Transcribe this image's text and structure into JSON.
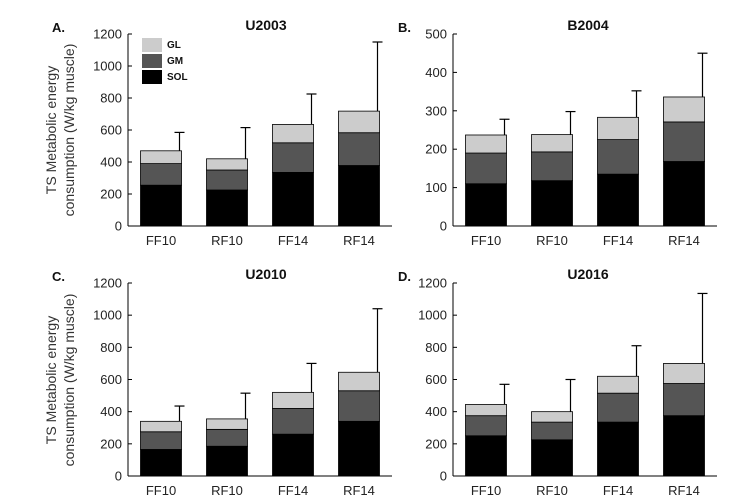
{
  "y_axis_label": {
    "line1": "TS Metabolic energy",
    "line2": "consumption (W/kg muscle)"
  },
  "colors": {
    "SOL": "#000000",
    "GM": "#555555",
    "GL": "#cccccc"
  },
  "legend": [
    "GL",
    "GM",
    "SOL"
  ],
  "chart_data": [
    {
      "type": "bar",
      "stacked": true,
      "panel_label": "A.",
      "title": "U2003",
      "categories": [
        "FF10",
        "RF10",
        "FF14",
        "RF14"
      ],
      "ylim": [
        0,
        1200
      ],
      "yticks": [
        0,
        200,
        400,
        600,
        800,
        1000,
        1200
      ],
      "series": [
        {
          "name": "SOL",
          "values": [
            255,
            225,
            335,
            378
          ]
        },
        {
          "name": "GM",
          "values": [
            135,
            125,
            185,
            205
          ]
        },
        {
          "name": "GL",
          "values": [
            80,
            70,
            115,
            135
          ]
        }
      ],
      "error_top": [
        585,
        615,
        825,
        1150
      ]
    },
    {
      "type": "bar",
      "stacked": true,
      "panel_label": "B.",
      "title": "B2004",
      "categories": [
        "FF10",
        "RF10",
        "FF14",
        "RF14"
      ],
      "ylim": [
        0,
        500
      ],
      "yticks": [
        0,
        100,
        200,
        300,
        400,
        500
      ],
      "series": [
        {
          "name": "SOL",
          "values": [
            110,
            118,
            135,
            168
          ]
        },
        {
          "name": "GM",
          "values": [
            80,
            75,
            90,
            103
          ]
        },
        {
          "name": "GL",
          "values": [
            47,
            45,
            58,
            65
          ]
        }
      ],
      "error_top": [
        278,
        298,
        352,
        450
      ]
    },
    {
      "type": "bar",
      "stacked": true,
      "panel_label": "C.",
      "title": "U2010",
      "categories": [
        "FF10",
        "RF10",
        "FF14",
        "RF14"
      ],
      "ylim": [
        0,
        1200
      ],
      "yticks": [
        0,
        200,
        400,
        600,
        800,
        1000,
        1200
      ],
      "series": [
        {
          "name": "SOL",
          "values": [
            165,
            185,
            260,
            340
          ]
        },
        {
          "name": "GM",
          "values": [
            110,
            105,
            160,
            190
          ]
        },
        {
          "name": "GL",
          "values": [
            65,
            65,
            100,
            115
          ]
        }
      ],
      "error_top": [
        435,
        515,
        700,
        1040
      ]
    },
    {
      "type": "bar",
      "stacked": true,
      "panel_label": "D.",
      "title": "U2016",
      "categories": [
        "FF10",
        "RF10",
        "FF14",
        "RF14"
      ],
      "ylim": [
        0,
        1200
      ],
      "yticks": [
        0,
        200,
        400,
        600,
        800,
        1000,
        1200
      ],
      "series": [
        {
          "name": "SOL",
          "values": [
            250,
            225,
            335,
            375
          ]
        },
        {
          "name": "GM",
          "values": [
            125,
            110,
            180,
            200
          ]
        },
        {
          "name": "GL",
          "values": [
            70,
            65,
            105,
            125
          ]
        }
      ],
      "error_top": [
        570,
        600,
        810,
        1135
      ]
    }
  ]
}
